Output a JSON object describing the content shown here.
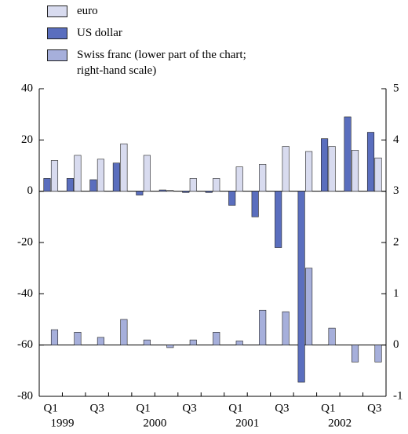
{
  "chart_data": {
    "type": "bar",
    "categories": [
      "Q1",
      null,
      "Q3",
      null,
      "Q1",
      null,
      "Q3",
      null,
      "Q1",
      null,
      "Q3",
      null,
      "Q1",
      null,
      "Q3"
    ],
    "years": [
      "1999",
      "2000",
      "2001",
      "2002"
    ],
    "series": [
      {
        "name": "euro",
        "color": "#d8dbef",
        "values": [
          12,
          14,
          12.5,
          18.5,
          14,
          0.3,
          5,
          5,
          9.5,
          10.5,
          17.5,
          15.5,
          17.5,
          16,
          13
        ]
      },
      {
        "name": "US dollar",
        "color": "#5a6ebe",
        "values": [
          5,
          5,
          4.5,
          11,
          -1.5,
          0.5,
          -0.5,
          -0.5,
          -5.5,
          -10,
          -22,
          -74.5,
          20.5,
          29,
          23
        ]
      },
      {
        "name": "Swiss franc (lower part of the chart; right-hand scale)",
        "color": "#a6afdb",
        "axis": "y2",
        "values": [
          0.3,
          0.25,
          0.15,
          0.5,
          0.1,
          -0.05,
          0.1,
          0.25,
          0.08,
          0.68,
          0.65,
          1.5,
          0.33,
          -0.33,
          -0.33
        ]
      }
    ],
    "ylim": [
      -80,
      40
    ],
    "yticks": [
      -80,
      -60,
      -40,
      -20,
      0,
      20,
      40
    ],
    "y2lim": [
      -1,
      5
    ],
    "y2ticks": [
      -1,
      0,
      1,
      2,
      3,
      4,
      5
    ]
  }
}
